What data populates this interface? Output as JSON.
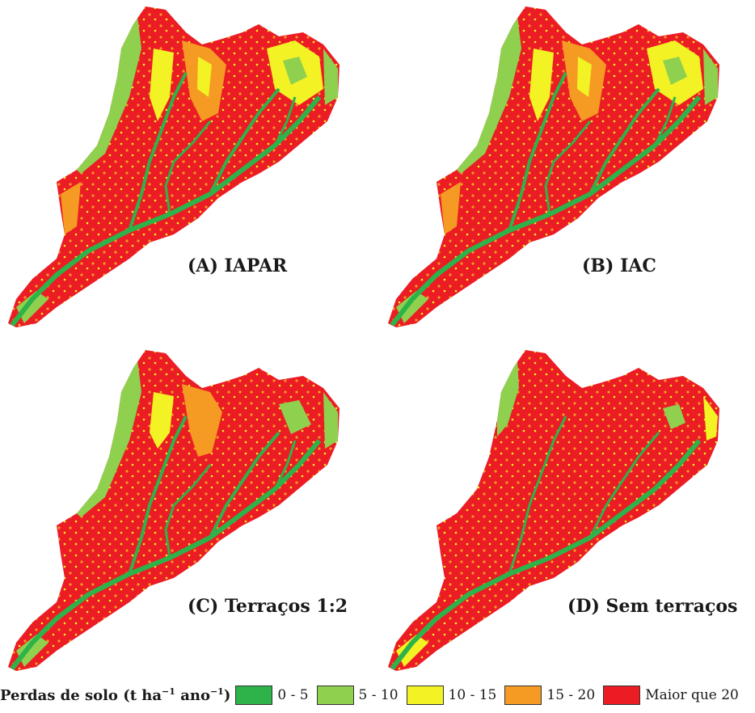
{
  "panels": [
    {
      "label": "(A) IAPAR"
    },
    {
      "label": "(B) IAC"
    },
    {
      "label": "(C) Terraços 1:2"
    },
    {
      "label": "(D) Sem terraços"
    }
  ],
  "legend": {
    "title_prefix": "Perdas de solo (t ha",
    "title_sup1": "−1",
    "title_mid": " ano",
    "title_sup2": "−1",
    "title_suffix": ")",
    "items": [
      {
        "label": "0 - 5",
        "color": "#2db34a"
      },
      {
        "label": "5 - 10",
        "color": "#8fd14f"
      },
      {
        "label": "10 - 15",
        "color": "#f2f224"
      },
      {
        "label": "15 - 20",
        "color": "#f59a23"
      },
      {
        "label": "Maior que 20",
        "color": "#ec1c24"
      }
    ]
  }
}
